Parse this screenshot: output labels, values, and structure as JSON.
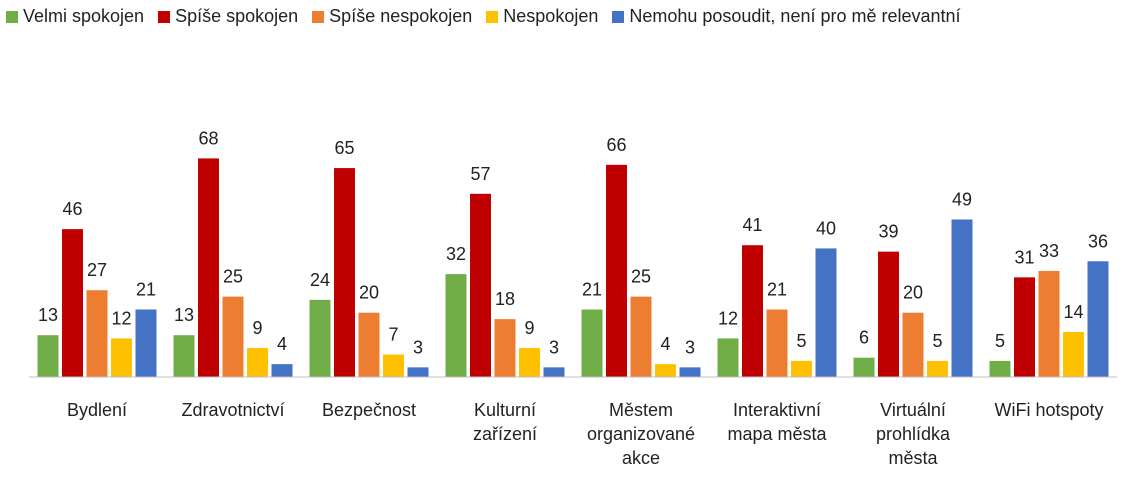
{
  "chart_data": {
    "type": "bar",
    "categories": [
      [
        "Bydlení"
      ],
      [
        "Zdravotnictví"
      ],
      [
        "Bezpečnost"
      ],
      [
        "Kulturní",
        "zařízení"
      ],
      [
        "Městem",
        "organizované",
        "akce"
      ],
      [
        "Interaktivní",
        "mapa města"
      ],
      [
        "Virtuální",
        "prohlídka",
        "města"
      ],
      [
        "WiFi hotspoty"
      ]
    ],
    "series": [
      {
        "name": "Velmi spokojen",
        "color": "#70ad47",
        "values": [
          13,
          13,
          24,
          32,
          21,
          12,
          6,
          5
        ]
      },
      {
        "name": "Spíše spokojen",
        "color": "#c00000",
        "values": [
          46,
          68,
          65,
          57,
          66,
          41,
          39,
          31
        ]
      },
      {
        "name": "Spíše nespokojen",
        "color": "#ed7d31",
        "values": [
          27,
          25,
          20,
          18,
          25,
          21,
          20,
          33
        ]
      },
      {
        "name": "Nespokojen",
        "color": "#ffc000",
        "values": [
          12,
          9,
          7,
          9,
          4,
          5,
          5,
          14
        ]
      },
      {
        "name": "Nemohu posoudit, není pro mě relevantní",
        "color": "#4472c4",
        "values": [
          21,
          4,
          3,
          3,
          3,
          40,
          49,
          36
        ]
      }
    ],
    "ylim": [
      0,
      70
    ],
    "legend": "top"
  }
}
